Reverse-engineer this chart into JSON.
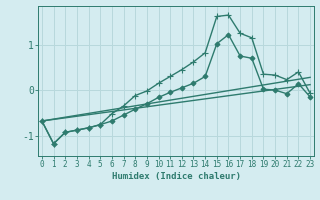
{
  "xlabel": "Humidex (Indice chaleur)",
  "bg_color": "#d4ecf0",
  "line_color": "#2e7b6e",
  "grid_color": "#b8d8dc",
  "x_ticks": [
    0,
    1,
    2,
    3,
    4,
    5,
    6,
    7,
    8,
    9,
    10,
    11,
    12,
    13,
    14,
    15,
    16,
    17,
    18,
    19,
    20,
    21,
    22,
    23
  ],
  "y_ticks": [
    -1,
    0,
    1
  ],
  "ylim": [
    -1.45,
    1.85
  ],
  "xlim": [
    -0.3,
    23.3
  ],
  "series": [
    {
      "x": [
        0,
        1,
        2,
        3,
        4,
        5,
        6,
        7,
        8,
        9,
        10,
        11,
        12,
        13,
        14,
        15,
        16,
        17,
        18,
        19,
        20,
        21,
        22,
        23
      ],
      "y": [
        -0.68,
        -1.18,
        -0.93,
        -0.88,
        -0.83,
        -0.76,
        -0.52,
        -0.35,
        -0.12,
        -0.02,
        0.15,
        0.3,
        0.45,
        0.62,
        0.82,
        1.62,
        1.65,
        1.25,
        1.15,
        0.35,
        0.33,
        0.23,
        0.4,
        -0.07
      ],
      "marker": "+",
      "linewidth": 1.0,
      "markersize": 4
    },
    {
      "x": [
        0,
        1,
        2,
        3,
        4,
        5,
        6,
        7,
        8,
        9,
        10,
        11,
        12,
        13,
        14,
        15,
        16,
        17,
        18,
        19,
        20,
        21,
        22,
        23
      ],
      "y": [
        -0.68,
        -1.18,
        -0.93,
        -0.88,
        -0.83,
        -0.76,
        -0.68,
        -0.55,
        -0.42,
        -0.3,
        -0.16,
        -0.05,
        0.05,
        0.15,
        0.3,
        1.02,
        1.22,
        0.75,
        0.7,
        0.02,
        0.0,
        -0.08,
        0.14,
        -0.15
      ],
      "marker": "D",
      "linewidth": 1.0,
      "markersize": 2.5
    },
    {
      "x": [
        0,
        23
      ],
      "y": [
        -0.68,
        0.12
      ],
      "marker": null,
      "linewidth": 1.0,
      "markersize": 0
    },
    {
      "x": [
        0,
        23
      ],
      "y": [
        -0.68,
        0.28
      ],
      "marker": null,
      "linewidth": 1.0,
      "markersize": 0
    }
  ]
}
